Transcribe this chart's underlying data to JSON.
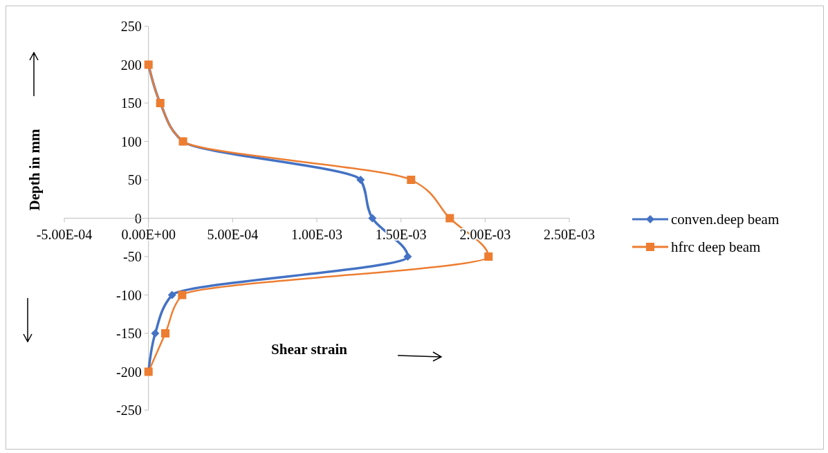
{
  "chart_data": {
    "type": "line",
    "xlabel": "Shear strain",
    "ylabel": "Depth in mm",
    "legend": "right",
    "xlim": [
      -0.0005,
      0.0025
    ],
    "xticks": [
      {
        "value": -0.0005,
        "label": "-5.00E-04"
      },
      {
        "value": 0,
        "label": "0.00E+00"
      },
      {
        "value": 0.0005,
        "label": "5.00E-04"
      },
      {
        "value": 0.001,
        "label": "1.00E-03"
      },
      {
        "value": 0.0015,
        "label": "1.50E-03"
      },
      {
        "value": 0.002,
        "label": "2.00E-03"
      },
      {
        "value": 0.0025,
        "label": "2.50E-03"
      }
    ],
    "ylim": [
      -250,
      250
    ],
    "yticks": [
      -250,
      -200,
      -150,
      -100,
      -50,
      0,
      50,
      100,
      150,
      200,
      250
    ],
    "series": [
      {
        "name": "conven.deep beam",
        "color": "#4472c4",
        "marker": "diamond",
        "x": [
          0,
          7e-05,
          0.000205,
          0.00126,
          0.00133,
          0.00154,
          0.00014,
          4e-05,
          0
        ],
        "values": [
          200,
          150,
          100,
          50,
          0,
          -50,
          -100,
          -150,
          -200
        ]
      },
      {
        "name": "hfrc deep beam",
        "color": "#ed7d31",
        "marker": "square",
        "x": [
          0,
          7e-05,
          0.000205,
          0.00156,
          0.00179,
          0.00202,
          0.0002,
          0.0001,
          0
        ],
        "values": [
          200,
          150,
          100,
          50,
          0,
          -50,
          -100,
          -150,
          -200
        ]
      }
    ]
  }
}
